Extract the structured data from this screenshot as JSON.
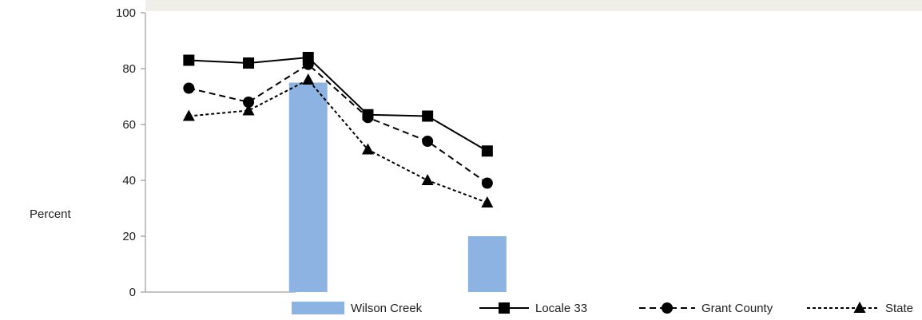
{
  "chart_data": {
    "type": "bar",
    "title": "",
    "xlabel": "",
    "ylabel": "Percent",
    "ylim": [
      0,
      100
    ],
    "yticks": [
      0,
      20,
      40,
      60,
      80,
      100
    ],
    "categories": [
      "",
      "",
      "",
      "",
      "",
      "",
      "",
      "",
      "",
      "",
      "",
      "",
      "",
      ""
    ],
    "series": [
      {
        "name": "Wilson Creek",
        "type": "bar",
        "color": "#8db3e2",
        "values": [
          null,
          null,
          75,
          null,
          null,
          20,
          null,
          null,
          null,
          null,
          null,
          null,
          null,
          null
        ]
      },
      {
        "name": "Locale 33",
        "type": "line",
        "marker": "square",
        "dash": "solid",
        "color": "#000000",
        "values": [
          83,
          82,
          84,
          63.5,
          63,
          50.5,
          null,
          null,
          null,
          null,
          null,
          null,
          null,
          null
        ]
      },
      {
        "name": "Grant County",
        "type": "line",
        "marker": "circle",
        "dash": "dashed",
        "color": "#000000",
        "values": [
          73,
          68,
          81.5,
          62.5,
          54,
          39,
          null,
          null,
          null,
          null,
          null,
          null,
          null,
          null
        ]
      },
      {
        "name": "State",
        "type": "line",
        "marker": "triangle",
        "dash": "dotted",
        "color": "#000000",
        "values": [
          63,
          65,
          76,
          51,
          40,
          32,
          null,
          null,
          null,
          null,
          null,
          null,
          null,
          null
        ]
      }
    ],
    "legend": "bottom",
    "grid": false
  }
}
